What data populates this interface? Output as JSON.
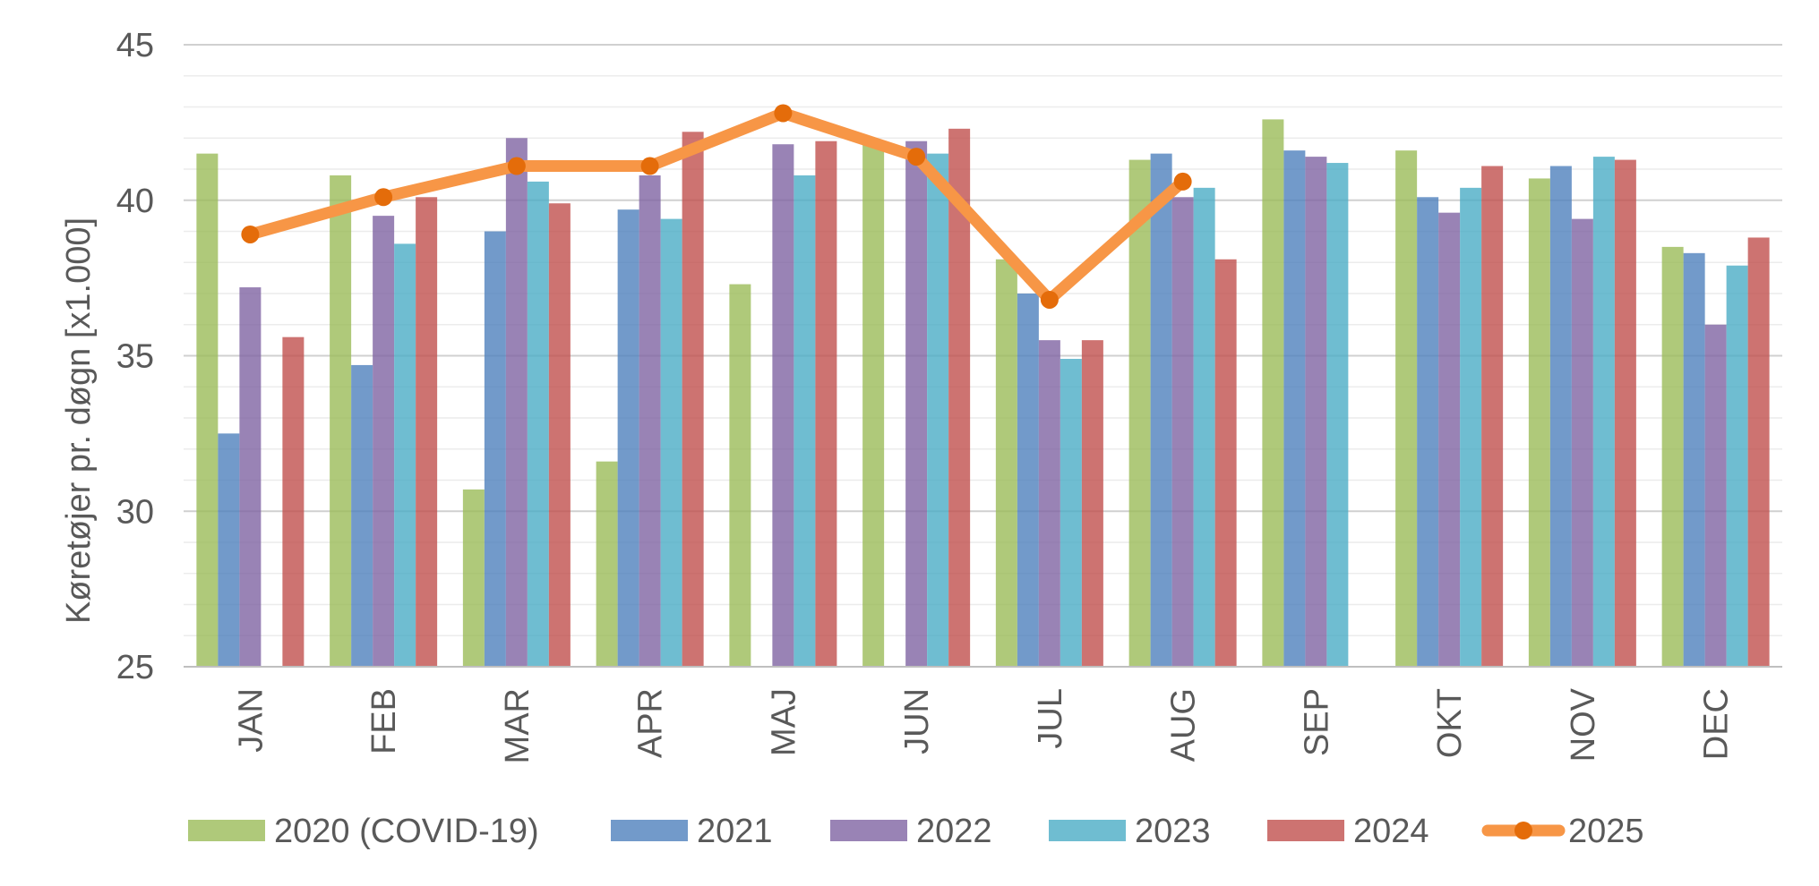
{
  "chart_data": {
    "type": "bar",
    "title": "",
    "ylabel": "Køretøjer pr. døgn [x1.000]",
    "xlabel": "",
    "ylim": [
      25,
      45
    ],
    "yticks": [
      "25",
      "30",
      "35",
      "40",
      "45"
    ],
    "ytick_values": [
      25,
      30,
      35,
      40,
      45
    ],
    "grid": true,
    "legend_position": "bottom",
    "categories": [
      "JAN",
      "FEB",
      "MAR",
      "APR",
      "MAJ",
      "JUN",
      "JUL",
      "AUG",
      "SEP",
      "OKT",
      "NOV",
      "DEC"
    ],
    "series": [
      {
        "name": "2020 (COVID-19)",
        "type": "bar",
        "color": "#9BBB59",
        "values": [
          41.5,
          40.8,
          30.7,
          31.6,
          37.3,
          41.8,
          38.1,
          41.3,
          42.6,
          41.6,
          40.7,
          38.5
        ]
      },
      {
        "name": "2021",
        "type": "bar",
        "color": "#4F81BD",
        "values": [
          32.5,
          34.7,
          39.0,
          39.7,
          null,
          null,
          37.0,
          41.5,
          41.6,
          40.1,
          41.1,
          38.3
        ]
      },
      {
        "name": "2022",
        "type": "bar",
        "color": "#8064A2",
        "values": [
          37.2,
          39.5,
          42.0,
          40.8,
          41.8,
          41.9,
          35.5,
          40.1,
          41.4,
          39.6,
          39.4,
          36.0
        ]
      },
      {
        "name": "2023",
        "type": "bar",
        "color": "#4BACC6",
        "values": [
          null,
          38.6,
          40.6,
          39.4,
          40.8,
          41.5,
          34.9,
          40.4,
          41.2,
          40.4,
          41.4,
          37.9
        ]
      },
      {
        "name": "2024",
        "type": "bar",
        "color": "#C0504D",
        "values": [
          35.6,
          40.1,
          39.9,
          42.2,
          41.9,
          42.3,
          35.5,
          38.1,
          null,
          41.1,
          41.3,
          38.8
        ]
      },
      {
        "name": "2025",
        "type": "line",
        "color": "#F79646",
        "marker_color": "#E46C0A",
        "values": [
          38.9,
          40.1,
          41.1,
          41.1,
          42.8,
          41.4,
          36.8,
          40.6,
          null,
          null,
          null,
          null
        ]
      }
    ]
  }
}
